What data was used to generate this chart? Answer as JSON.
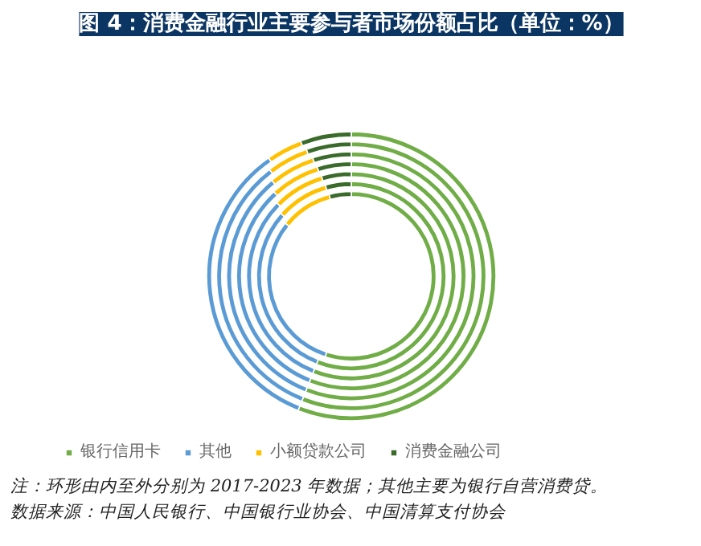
{
  "chart_data": {
    "type": "donut",
    "title": "图 4：消费金融行业主要参与者市场份额占比（单位：%）",
    "categories": [
      "银行信用卡",
      "其他",
      "小额贷款公司",
      "消费金融公司"
    ],
    "colors": [
      "#70ad47",
      "#5b9bd5",
      "#ffc000",
      "#3a6b2a"
    ],
    "series": [
      {
        "values": [
          55,
          30.8,
          10,
          4.2
        ]
      },
      {
        "values": [
          56,
          30.6,
          9,
          4.4
        ]
      },
      {
        "values": [
          56,
          31.4,
          8,
          4.6
        ]
      },
      {
        "values": [
          56,
          32.2,
          7,
          4.8
        ]
      },
      {
        "values": [
          56,
          33,
          6,
          5
        ]
      },
      {
        "values": [
          56,
          33.6,
          5,
          5.4
        ]
      },
      {
        "values": [
          56,
          34.3,
          4,
          5.7
        ]
      }
    ],
    "legend": "bottom",
    "annotations": [
      "注：环形由内至外分别为 2017-2023 年数据；其他主要为银行自营消费贷。",
      "数据来源：中国人民银行、中国银行业协会、中国清算支付协会"
    ]
  }
}
